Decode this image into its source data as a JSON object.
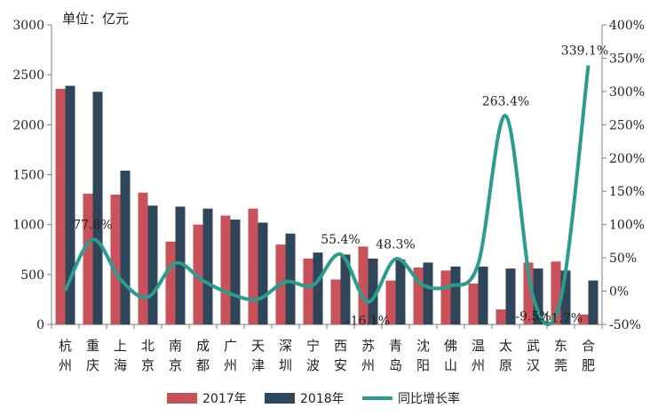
{
  "chart_data": {
    "type": "bar",
    "unit_label": "单位：亿元",
    "categories": [
      "杭州",
      "重庆",
      "上海",
      "北京",
      "南京",
      "成都",
      "广州",
      "天津",
      "深圳",
      "宁波",
      "西安",
      "苏州",
      "青岛",
      "沈阳",
      "佛山",
      "温州",
      "太原",
      "武汉",
      "东莞",
      "合肥"
    ],
    "series": [
      {
        "name": "2017年",
        "type": "bar",
        "axis": "left",
        "color": "#c9525a",
        "values": [
          2360,
          1310,
          1300,
          1320,
          830,
          1000,
          1090,
          1160,
          800,
          660,
          450,
          780,
          440,
          570,
          540,
          410,
          150,
          620,
          630,
          100
        ]
      },
      {
        "name": "2018年",
        "type": "bar",
        "axis": "left",
        "color": "#2f4559",
        "values": [
          2390,
          2330,
          1540,
          1190,
          1180,
          1160,
          1050,
          1020,
          910,
          720,
          700,
          660,
          650,
          620,
          580,
          580,
          560,
          560,
          540,
          440
        ]
      },
      {
        "name": "同比增长率",
        "type": "line",
        "axis": "right",
        "color": "#2a9d8f",
        "unit": "%",
        "values": [
          1,
          77.8,
          18,
          -9,
          42,
          16,
          -4,
          -12,
          14,
          9,
          55.4,
          -16.1,
          48.3,
          9,
          8,
          41,
          263.4,
          -9.5,
          -11.7,
          339.1
        ]
      }
    ],
    "data_labels": [
      {
        "series": "同比增长率",
        "category": "重庆",
        "text": "77.8%"
      },
      {
        "series": "同比增长率",
        "category": "西安",
        "text": "55.4%"
      },
      {
        "series": "同比增长率",
        "category": "苏州",
        "text": "-16.1%"
      },
      {
        "series": "同比增长率",
        "category": "青岛",
        "text": "48.3%"
      },
      {
        "series": "同比增长率",
        "category": "太原",
        "text": "263.4%"
      },
      {
        "series": "同比增长率",
        "category": "武汉",
        "text": "-9.5%"
      },
      {
        "series": "同比增长率",
        "category": "东莞",
        "text": "-11.7%"
      },
      {
        "series": "同比增长率",
        "category": "合肥",
        "text": "339.1%"
      }
    ],
    "y_left": {
      "min": 0,
      "max": 3000,
      "step": 500
    },
    "y_right": {
      "min": -50,
      "max": 400,
      "step": 50,
      "suffix": "%"
    },
    "grid": false,
    "legend_position": "bottom"
  }
}
